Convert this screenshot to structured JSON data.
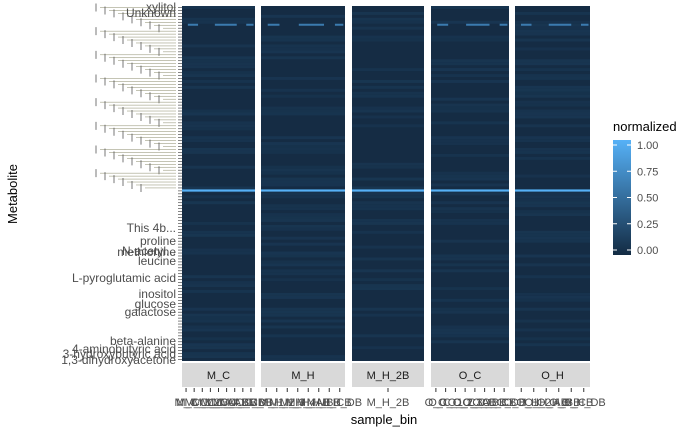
{
  "chart_data": {
    "type": "heatmap",
    "title": "",
    "xlabel": "sample_bin",
    "ylabel": "Metabolite",
    "facets": [
      "M_C",
      "M_H",
      "M_H_2B",
      "O_C",
      "O_H"
    ],
    "x_tick_labels": {
      "M_C": [
        "M_C",
        "M_C_1",
        "M_C_2",
        "M_C_3",
        "M_C_4",
        "M_C_AB",
        "M_C_BB",
        "M_C_CB",
        "M_C_DB"
      ],
      "M_H": [
        "M_H_1",
        "M_H_2",
        "M_H_3",
        "M_H_4",
        "M_H_AB",
        "M_H_BB",
        "M_H_CB",
        "M_H_DB"
      ],
      "M_H_2B": [
        "M_H_2B"
      ],
      "O_C": [
        "O_C",
        "O_C_1",
        "O_C_2",
        "O_C_3",
        "O_C_AB",
        "O_C_BB",
        "O_C_CB",
        "O_C_DB"
      ],
      "O_H": [
        "O_H_1",
        "O_H_2",
        "O_H_AB",
        "O_H_BB",
        "O_H_CB",
        "O_H_DB"
      ]
    },
    "y_tick_labels_visible": [
      "xylitol",
      "Unknown",
      "This 4b...",
      "proline",
      "methionine",
      "N-acetyl...",
      "leucine",
      "L-pyroglutamic acid",
      "inositol",
      "galactose",
      "glucose",
      "beta-alanine",
      "4-aminobutyric acid",
      "3-hydroxybutyric acid",
      "1,3-dihydroxyacetone"
    ],
    "metabolite_count": 120,
    "highlighted_rows": [
      {
        "row_index": 6,
        "normalized_value": 0.6,
        "facets": [
          "M_C",
          "M_H",
          "O_C",
          "O_H"
        ]
      },
      {
        "row_index": 62,
        "normalized_value": 1.0,
        "facets": [
          "M_C",
          "M_H",
          "M_H_2B",
          "O_C",
          "O_H"
        ]
      }
    ],
    "background_value": 0.05,
    "legend": {
      "title": "normalized",
      "ticks": [
        "0.00",
        "0.25",
        "0.50",
        "0.75",
        "1.00"
      ],
      "range": [
        0,
        1
      ],
      "position": "right",
      "low_color": "#132B43",
      "high_color": "#56B1F7"
    },
    "colors": {
      "panel_fill": "#152c44",
      "strip_fill": "#d9d9d9",
      "text": "#4d4d4d"
    }
  }
}
